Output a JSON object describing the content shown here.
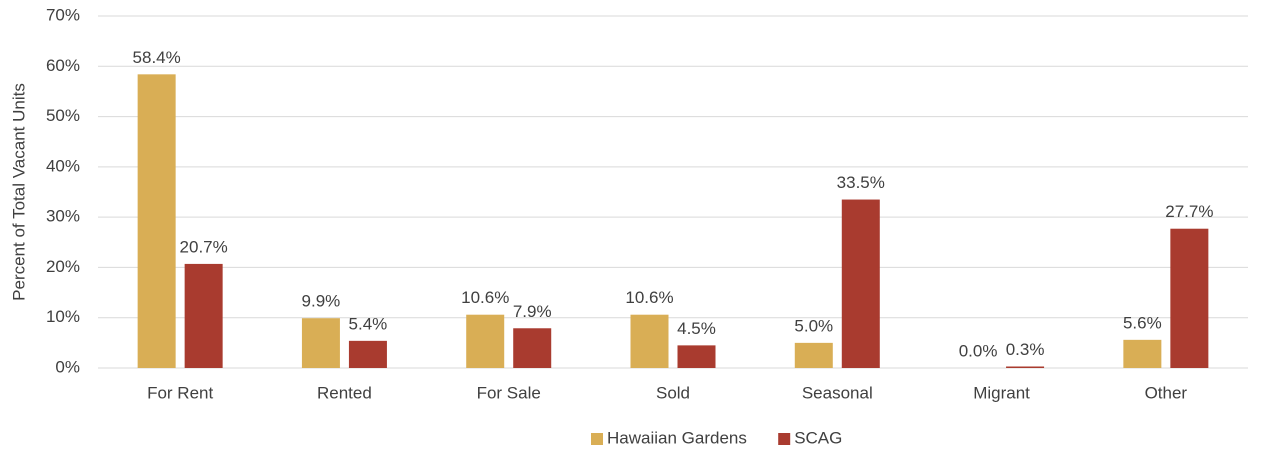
{
  "chart_data": {
    "type": "bar",
    "y_axis_label": "Percent of Total Vacant Units",
    "categories": [
      "For Rent",
      "Rented",
      "For Sale",
      "Sold",
      "Seasonal",
      "Migrant",
      "Other"
    ],
    "series": [
      {
        "name": "Hawaiian Gardens",
        "color": "#d9ae55",
        "values": [
          58.4,
          9.9,
          10.6,
          10.6,
          5.0,
          0.0,
          5.6
        ],
        "value_labels": [
          "58.4%",
          "9.9%",
          "10.6%",
          "10.6%",
          "5.0%",
          "0.0%",
          "5.6%"
        ]
      },
      {
        "name": "SCAG",
        "color": "#a93b2f",
        "values": [
          20.7,
          5.4,
          7.9,
          4.5,
          33.5,
          0.3,
          27.7
        ],
        "value_labels": [
          "20.7%",
          "5.4%",
          "7.9%",
          "4.5%",
          "33.5%",
          "0.3%",
          "27.7%"
        ]
      }
    ],
    "ylim": [
      0,
      70
    ],
    "yticks": [
      {
        "value": 0,
        "label": "0%"
      },
      {
        "value": 10,
        "label": "10%"
      },
      {
        "value": 20,
        "label": "20%"
      },
      {
        "value": 30,
        "label": "30%"
      },
      {
        "value": 40,
        "label": "40%"
      },
      {
        "value": 50,
        "label": "50%"
      },
      {
        "value": 60,
        "label": "60%"
      },
      {
        "value": 70,
        "label": "70%"
      }
    ],
    "grid": true,
    "legend": "bottom"
  }
}
